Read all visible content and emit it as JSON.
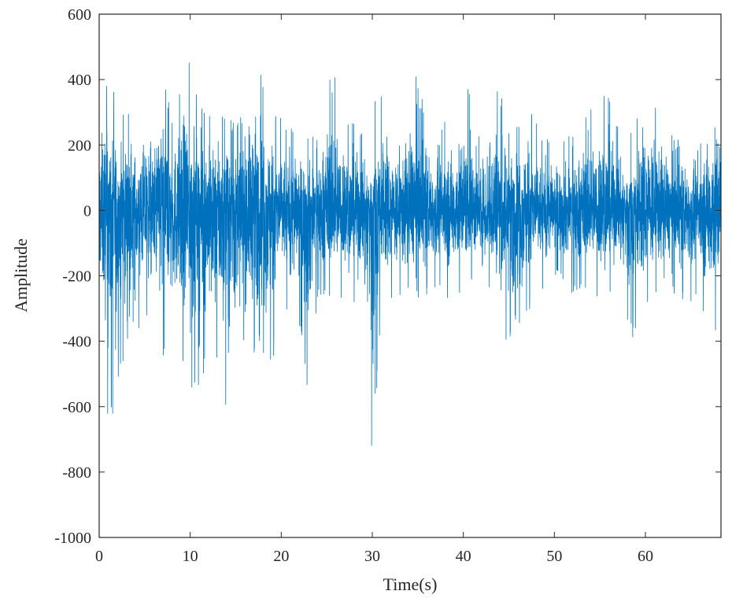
{
  "chart_data": {
    "type": "line",
    "title": "",
    "xlabel": "Time(s)",
    "ylabel": "Amplitude",
    "xlim": [
      0,
      68.3
    ],
    "ylim": [
      -1000,
      600
    ],
    "xticks": [
      0,
      10,
      20,
      30,
      40,
      50,
      60
    ],
    "yticks": [
      600,
      400,
      200,
      0,
      -200,
      -400,
      -600,
      -800,
      -1000
    ],
    "grid": false,
    "legend": "none",
    "line_color": "#0072BD",
    "series": [
      {
        "envelope_upper": [
          [
            0,
            340
          ],
          [
            1,
            460
          ],
          [
            2,
            300
          ],
          [
            3,
            320
          ],
          [
            4,
            280
          ],
          [
            5,
            350
          ],
          [
            6,
            300
          ],
          [
            6.7,
            500
          ],
          [
            8,
            290
          ],
          [
            9,
            390
          ],
          [
            9.6,
            520
          ],
          [
            11,
            330
          ],
          [
            13,
            300
          ],
          [
            15,
            270
          ],
          [
            17.5,
            500
          ],
          [
            19,
            300
          ],
          [
            22,
            250
          ],
          [
            24,
            240
          ],
          [
            25.6,
            480
          ],
          [
            27.5,
            280
          ],
          [
            29,
            250
          ],
          [
            30,
            200
          ],
          [
            30.5,
            440
          ],
          [
            33,
            220
          ],
          [
            34.5,
            450
          ],
          [
            36.5,
            250
          ],
          [
            39,
            300
          ],
          [
            40,
            430
          ],
          [
            42,
            230
          ],
          [
            43.3,
            460
          ],
          [
            45,
            250
          ],
          [
            47,
            330
          ],
          [
            48.5,
            240
          ],
          [
            50,
            220
          ],
          [
            52,
            250
          ],
          [
            55.4,
            400
          ],
          [
            56.2,
            330
          ],
          [
            58,
            200
          ],
          [
            60,
            420
          ],
          [
            63,
            230
          ],
          [
            66,
            200
          ],
          [
            67.7,
            470
          ],
          [
            68.3,
            400
          ]
        ],
        "envelope_lower": [
          [
            0,
            -300
          ],
          [
            1,
            -660
          ],
          [
            2,
            -600
          ],
          [
            3,
            -420
          ],
          [
            4,
            -380
          ],
          [
            5,
            -330
          ],
          [
            6,
            -360
          ],
          [
            7,
            -480
          ],
          [
            8.6,
            -420
          ],
          [
            9.7,
            -590
          ],
          [
            11,
            -610
          ],
          [
            12,
            -450
          ],
          [
            14.5,
            -650
          ],
          [
            15.5,
            -430
          ],
          [
            17,
            -440
          ],
          [
            19,
            -500
          ],
          [
            20,
            -300
          ],
          [
            22,
            -360
          ],
          [
            22.8,
            -590
          ],
          [
            24,
            -270
          ],
          [
            26,
            -260
          ],
          [
            28,
            -290
          ],
          [
            29,
            -350
          ],
          [
            29.6,
            -560
          ],
          [
            30,
            -820
          ],
          [
            31,
            -300
          ],
          [
            33,
            -280
          ],
          [
            35,
            -270
          ],
          [
            37,
            -240
          ],
          [
            38,
            -290
          ],
          [
            41,
            -230
          ],
          [
            43,
            -250
          ],
          [
            44.4,
            -400
          ],
          [
            46,
            -380
          ],
          [
            48,
            -280
          ],
          [
            50,
            -200
          ],
          [
            52,
            -260
          ],
          [
            54,
            -230
          ],
          [
            55,
            -280
          ],
          [
            57,
            -240
          ],
          [
            58.5,
            -410
          ],
          [
            60,
            -310
          ],
          [
            62,
            -240
          ],
          [
            64,
            -270
          ],
          [
            66,
            -300
          ],
          [
            67.3,
            -400
          ],
          [
            68.3,
            -340
          ]
        ]
      }
    ]
  }
}
